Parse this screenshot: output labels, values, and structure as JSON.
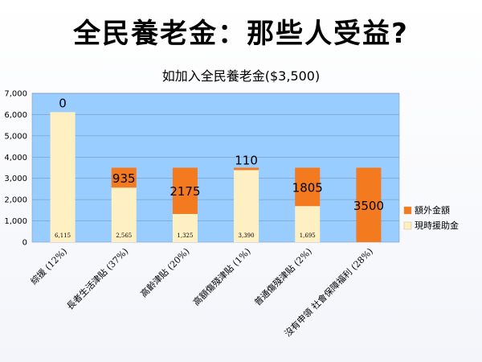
{
  "slide": {
    "title": "全民養老金：那些人受益?"
  },
  "chart_data": {
    "type": "bar",
    "stacked": true,
    "title": "如加入全民養老金($3,500)",
    "categories": [
      "綜援 (12%)",
      "長者生活津貼 (37%)",
      "高齡津貼 (20%)",
      "高額傷殘津貼 (1%)",
      "普通傷殘津貼 (2%)",
      "沒有申領 社會保障福利 (28%)"
    ],
    "series": [
      {
        "name": "現時援助金",
        "color": "#fff0c4",
        "values": [
          6115,
          2565,
          1325,
          3390,
          1695,
          0
        ],
        "labels": [
          "6,115",
          "2,565",
          "1,325",
          "3,390",
          "1,695",
          ""
        ]
      },
      {
        "name": "額外金額",
        "color": "#f47a1f",
        "values": [
          0,
          935,
          2175,
          110,
          1805,
          3500
        ],
        "labels": [
          "0",
          "935",
          "2175",
          "110",
          "1805",
          "3500"
        ]
      }
    ],
    "ylim": [
      0,
      7000
    ],
    "yticks": [
      "0",
      "1,000",
      "2,000",
      "3,000",
      "4,000",
      "5,000",
      "6,000",
      "7,000"
    ],
    "plot_background": "#99ccff",
    "grid": true,
    "legend_position": "right"
  }
}
